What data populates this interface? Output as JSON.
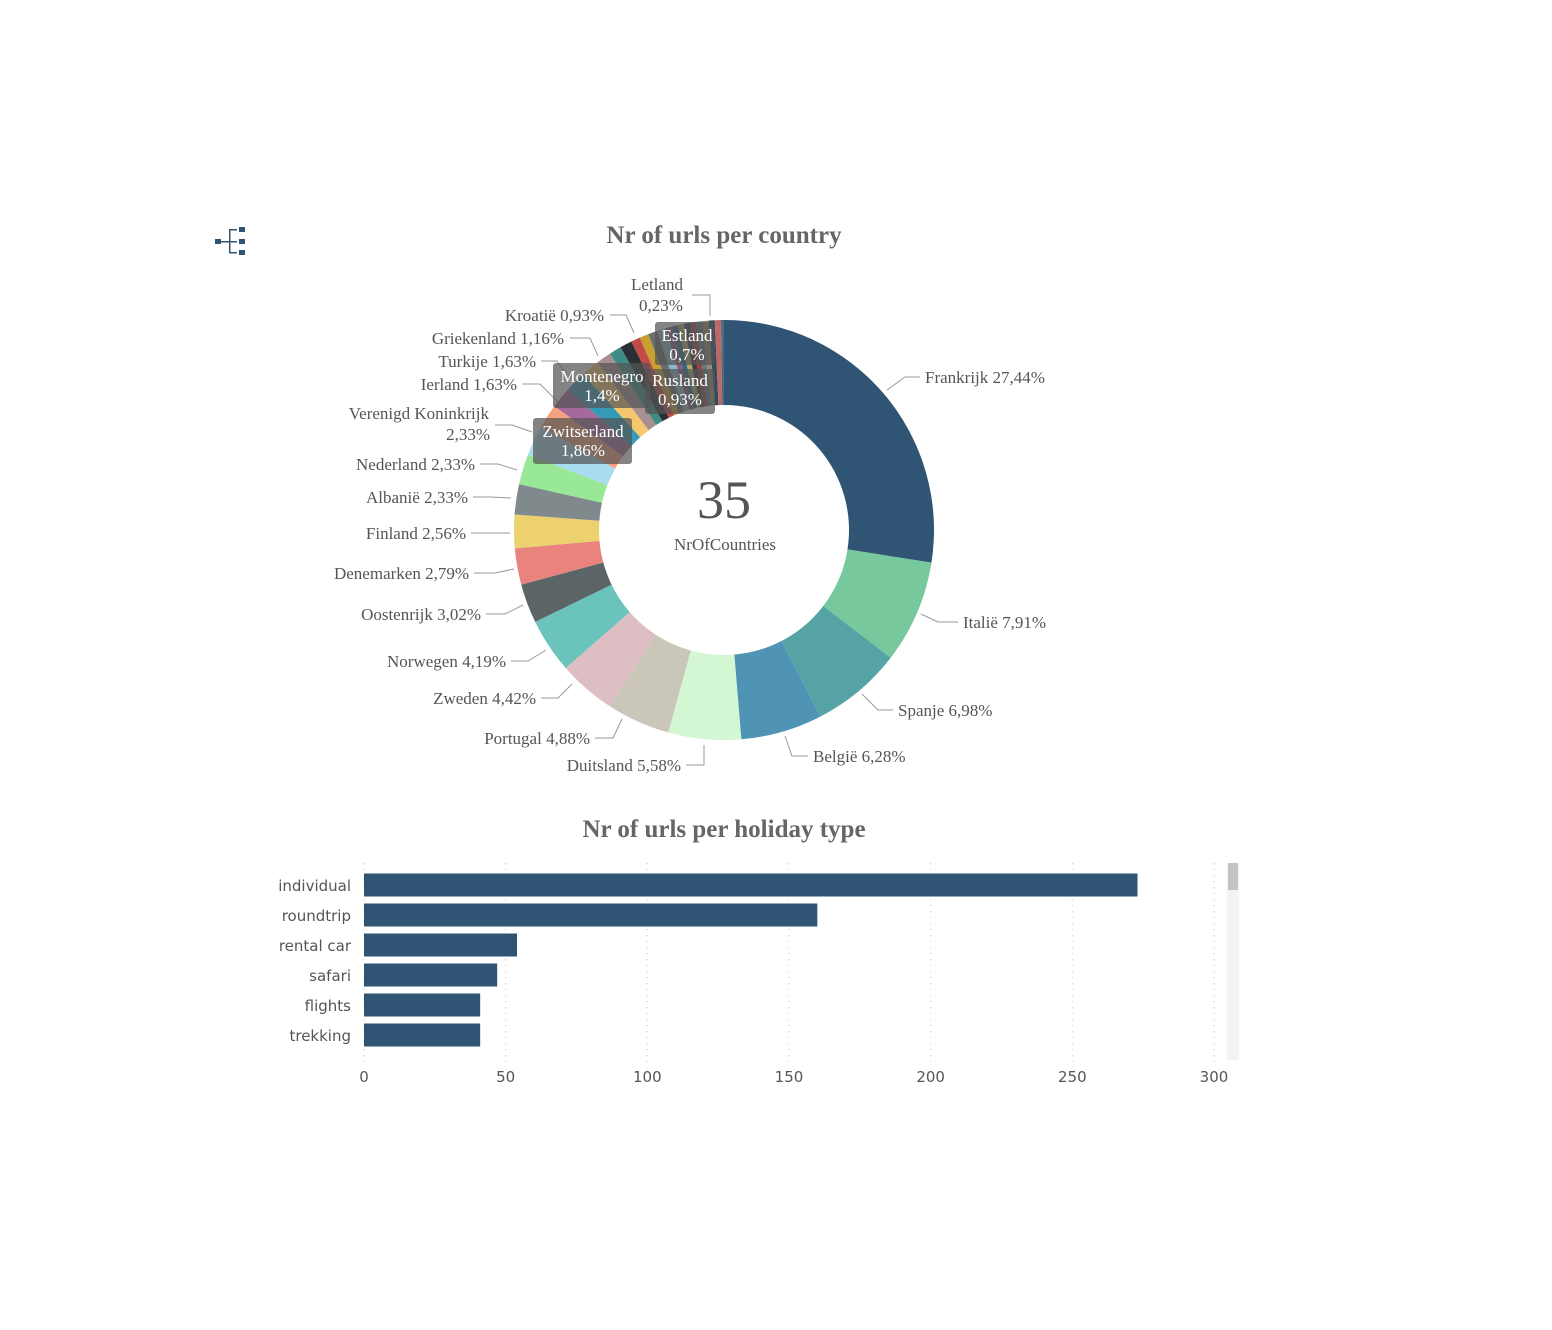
{
  "hierarchy_icon": "hierarchy-icon",
  "chart_data": [
    {
      "type": "pie",
      "variant": "donut",
      "title": "Nr of urls per country",
      "center_value": "35",
      "center_label": "NrOfCountries",
      "slices": [
        {
          "name": "Frankrijk",
          "value": 27.44,
          "label": "Frankrijk 27,44%",
          "color": "#2F5474"
        },
        {
          "name": "Italië",
          "value": 7.91,
          "label": "Italië 7,91%",
          "color": "#77C89C"
        },
        {
          "name": "Spanje",
          "value": 6.98,
          "label": "Spanje 6,98%",
          "color": "#56A3A6"
        },
        {
          "name": "België",
          "value": 6.28,
          "label": "België 6,28%",
          "color": "#4F94B4"
        },
        {
          "name": "Duitsland",
          "value": 5.58,
          "label": "Duitsland 5,58%",
          "color": "#D3F6D3"
        },
        {
          "name": "Portugal",
          "value": 4.88,
          "label": "Portugal 4,88%",
          "color": "#CBC6BA"
        },
        {
          "name": "Zweden",
          "value": 4.42,
          "label": "Zweden 4,42%",
          "color": "#DDBFC3"
        },
        {
          "name": "Norwegen",
          "value": 4.19,
          "label": "Norwegen 4,19%",
          "color": "#6BC4BC"
        },
        {
          "name": "Oostenrijk",
          "value": 3.02,
          "label": "Oostenrijk 3,02%",
          "color": "#5B6567"
        },
        {
          "name": "Denemarken",
          "value": 2.79,
          "label": "Denemarken 2,79%",
          "color": "#E8837E"
        },
        {
          "name": "Finland",
          "value": 2.56,
          "label": "Finland 2,56%",
          "color": "#ECD16E"
        },
        {
          "name": "Albanië",
          "value": 2.33,
          "label": "Albanië 2,33%",
          "color": "#808A8C"
        },
        {
          "name": "Nederland",
          "value": 2.33,
          "label": "Nederland 2,33%",
          "color": "#98E897"
        },
        {
          "name": "Verenigd Koninkrijk",
          "value": 2.33,
          "label": "Verenigd Koninkrijk",
          "label2": "2,33%",
          "color": "#A8DCEF"
        },
        {
          "name": "Zwitserland",
          "value": 1.86,
          "label": "Zwitserland",
          "label2": "1,86%",
          "color": "#F7A07C"
        },
        {
          "name": "Ierland",
          "value": 1.63,
          "label": "Ierland 1,63%",
          "color": "#A66999"
        },
        {
          "name": "Turkije",
          "value": 1.63,
          "label": "Turkije 1,63%",
          "color": "#3599B8"
        },
        {
          "name": "Montenegro",
          "value": 1.4,
          "label": "Montenegro",
          "label2": "1,4%",
          "color": "#F6C86E"
        },
        {
          "name": "Griekenland",
          "value": 1.16,
          "label": "Griekenland 1,16%",
          "color": "#A89090"
        },
        {
          "name": "Kroatië",
          "value": 0.93,
          "label": "Kroatië 0,93%",
          "color": "#3E8C84"
        },
        {
          "name": "Rusland",
          "value": 0.93,
          "label": "Rusland",
          "label2": "0,93%",
          "color": "#2A2F33"
        },
        {
          "name": "Estland",
          "value": 0.7,
          "label": "Estland",
          "label2": "0,7%",
          "color": "#C44A4A"
        },
        {
          "name": "",
          "value": 0.7,
          "color": "#C8A030"
        },
        {
          "name": "",
          "value": 0.7,
          "color": "#6A6F71"
        },
        {
          "name": "",
          "value": 0.7,
          "color": "#8AB8C8"
        },
        {
          "name": "",
          "value": 0.47,
          "color": "#8E5C7E"
        },
        {
          "name": "",
          "value": 0.47,
          "color": "#2B6E86"
        },
        {
          "name": "",
          "value": 0.47,
          "color": "#B8A86A"
        },
        {
          "name": "",
          "value": 0.47,
          "color": "#3A3F42"
        },
        {
          "name": "",
          "value": 0.47,
          "color": "#A04040"
        },
        {
          "name": "",
          "value": 0.47,
          "color": "#5B7D84"
        },
        {
          "name": "",
          "value": 0.47,
          "color": "#9C8A6E"
        },
        {
          "name": "",
          "value": 0.47,
          "color": "#2F4D5E"
        },
        {
          "name": "",
          "value": 0.47,
          "color": "#C06868"
        },
        {
          "name": "Letland",
          "value": 0.23,
          "label": "Letland",
          "label2": "0,23%",
          "color": "#4A6E7E"
        }
      ]
    },
    {
      "type": "bar",
      "orientation": "horizontal",
      "title": "Nr of urls per holiday type",
      "categories": [
        "individual",
        "roundtrip",
        "rental car",
        "safari",
        "flights",
        "trekking"
      ],
      "values": [
        273,
        160,
        54,
        47,
        41,
        41
      ],
      "xlim": [
        0,
        300
      ],
      "xticks": [
        "0",
        "50",
        "100",
        "150",
        "200",
        "250",
        "300"
      ],
      "grid": true,
      "bar_color": "#2F5474"
    }
  ]
}
